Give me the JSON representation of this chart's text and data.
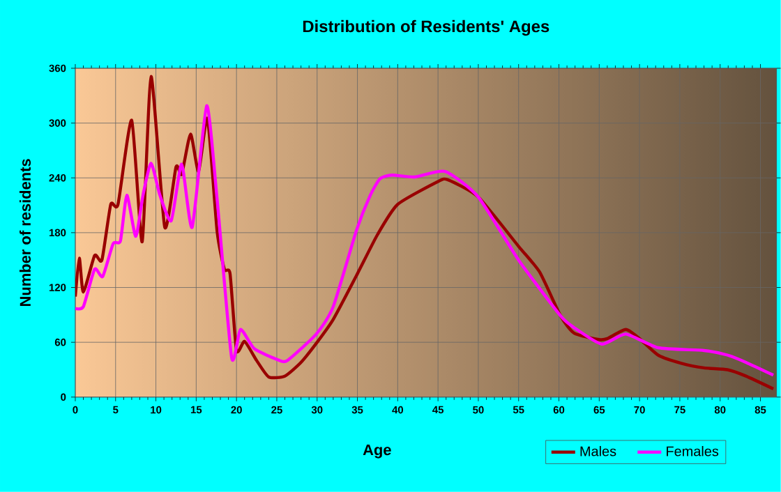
{
  "chart_data": {
    "type": "line",
    "title": "Distribution of Residents' Ages",
    "xlabel": "Age",
    "ylabel": "Number of residents",
    "xlim": [
      0,
      87
    ],
    "xticks": [
      0,
      5,
      10,
      15,
      20,
      25,
      30,
      35,
      40,
      45,
      50,
      55,
      60,
      65,
      70,
      75,
      80,
      85
    ],
    "ylim": [
      0,
      360
    ],
    "yticks": [
      0,
      60,
      120,
      180,
      240,
      300,
      360
    ],
    "grid": true,
    "legend": "bottom right",
    "marker": "none",
    "line_style": "solid",
    "series": [
      {
        "name": "Males",
        "color": "#990000",
        "x": [
          0,
          0.5,
          1,
          2.4,
          3.3,
          4.4,
          5.3,
          7,
          8.3,
          9.4,
          11.1,
          12.5,
          13.2,
          14.3,
          15.3,
          16.4,
          17.6,
          18.5,
          19.2,
          20,
          21,
          22.5,
          24,
          26,
          28,
          30,
          32,
          35,
          37.5,
          40,
          45,
          46.2,
          50,
          55,
          57.6,
          60.2,
          61.9,
          65,
          66,
          68.3,
          70,
          72.3,
          75.2,
          78,
          80.9,
          83.2,
          86.6
        ],
        "values": [
          110,
          152,
          115,
          155,
          150,
          211,
          211,
          303,
          170,
          351,
          186,
          252,
          244,
          288,
          247,
          305,
          181,
          140,
          135,
          51,
          61,
          40,
          22,
          23,
          38,
          60,
          85,
          135,
          178,
          211,
          236,
          238,
          219,
          165,
          137,
          89,
          70,
          63,
          64,
          74,
          64,
          46,
          37,
          32,
          30,
          23,
          9
        ]
      },
      {
        "name": "Females",
        "color": "#ff00ff",
        "x": [
          0,
          1,
          2.4,
          3.4,
          4.7,
          5.6,
          6.4,
          7.5,
          8.4,
          9.4,
          10.5,
          11.9,
          13.2,
          14.5,
          16.3,
          17.6,
          19.4,
          20.5,
          22.2,
          25.1,
          26.3,
          29.9,
          32,
          34.9,
          36.6,
          37.8,
          39.3,
          42.1,
          45.9,
          50,
          55,
          60.2,
          61.9,
          65.3,
          68.3,
          72.3,
          78,
          80.9,
          83.2,
          86.6
        ],
        "values": [
          97,
          99,
          140,
          132,
          168,
          171,
          221,
          176,
          221,
          256,
          221,
          193,
          255,
          186,
          319,
          216,
          43,
          74,
          53,
          41,
          40,
          69,
          99,
          183,
          221,
          239,
          243,
          241,
          247,
          219,
          150,
          89,
          76,
          58,
          69,
          54,
          51,
          46,
          38,
          24
        ]
      }
    ]
  }
}
